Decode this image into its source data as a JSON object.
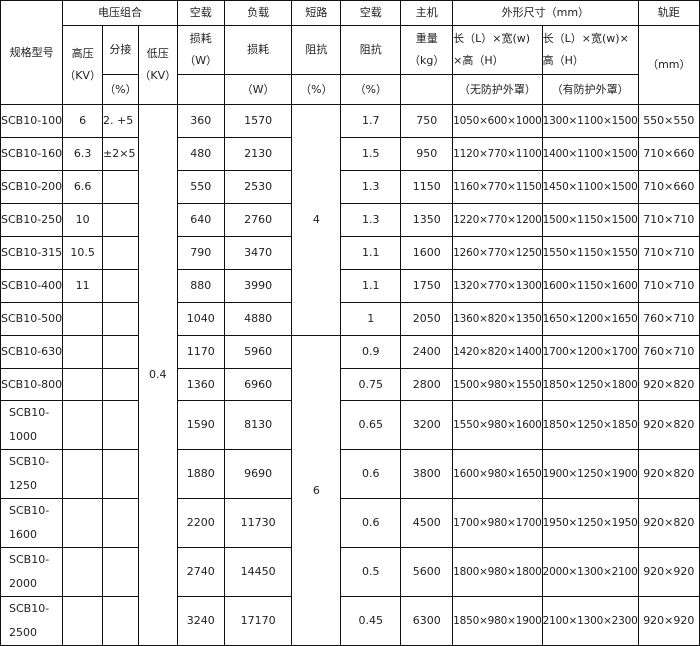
{
  "header": {
    "model": "规格型号",
    "voltage_group": "电压组合",
    "hv": "高压",
    "hv_unit": "（KV）",
    "tap": "分接",
    "tap_unit": "（%）",
    "lv": "低压",
    "lv_unit": "（KV）",
    "noload": "空载",
    "noload_sub": "损耗",
    "noload_unit": "（W）",
    "load": "负载",
    "load_sub": "损耗",
    "load_unit": "（W）",
    "short": "短路",
    "short_sub": "阻抗",
    "short_unit": "（%）",
    "noload2": "空载",
    "noload2_sub": "阻抗",
    "noload2_unit": "（%）",
    "host": "主机",
    "host_sub": "重量",
    "host_unit": "（kg）",
    "dims": "外形尺寸（mm）",
    "dim1_a": "长（L）×宽(w)",
    "dim1_b": "×高（H）",
    "dim1_note": "（无防护外罩）",
    "dim2_a": "长（L）×宽(w)×",
    "dim2_b": "高（H）",
    "dim2_note": "（有防护外罩）",
    "gauge": "轨距",
    "gauge_unit": "（mm）"
  },
  "lv_value": "0.4",
  "short_values": [
    "4",
    "6"
  ],
  "rows": [
    {
      "model": "SCB10-100",
      "hv": "6",
      "tap": "2. +5",
      "nl": "360",
      "ll": "1570",
      "z": "1.7",
      "w": "750",
      "d1": "1050×600×1000",
      "d2": "1300×1100×1500",
      "g": "550×550"
    },
    {
      "model": "SCB10-160",
      "hv": "6.3",
      "tap": "±2×5",
      "nl": "480",
      "ll": "2130",
      "z": "1.5",
      "w": "950",
      "d1": "1120×770×1100",
      "d2": "1400×1100×1500",
      "g": "710×660"
    },
    {
      "model": "SCB10-200",
      "hv": "6.6",
      "tap": "",
      "nl": "550",
      "ll": "2530",
      "z": "1.3",
      "w": "1150",
      "d1": "1160×770×1150",
      "d2": "1450×1100×1500",
      "g": "710×660"
    },
    {
      "model": "SCB10-250",
      "hv": "10",
      "tap": "",
      "nl": "640",
      "ll": "2760",
      "z": "1.3",
      "w": "1350",
      "d1": "1220×770×1200",
      "d2": "1500×1150×1500",
      "g": "710×710"
    },
    {
      "model": "SCB10-315",
      "hv": "10.5",
      "tap": "",
      "nl": "790",
      "ll": "3470",
      "z": "1.1",
      "w": "1600",
      "d1": "1260×770×1250",
      "d2": "1550×1150×1550",
      "g": "710×710"
    },
    {
      "model": "SCB10-400",
      "hv": "11",
      "tap": "",
      "nl": "880",
      "ll": "3990",
      "z": "1.1",
      "w": "1750",
      "d1": "1320×770×1300",
      "d2": "1600×1150×1600",
      "g": "710×710"
    },
    {
      "model": "SCB10-500",
      "hv": "",
      "tap": "",
      "nl": "1040",
      "ll": "4880",
      "z": "1",
      "w": "2050",
      "d1": "1360×820×1350",
      "d2": "1650×1200×1650",
      "g": "760×710"
    },
    {
      "model": "SCB10-630",
      "hv": "",
      "tap": "",
      "nl": "1170",
      "ll": "5960",
      "z": "0.9",
      "w": "2400",
      "d1": "1420×820×1400",
      "d2": "1700×1200×1700",
      "g": "760×710"
    },
    {
      "model": "SCB10-800",
      "hv": "",
      "tap": "",
      "nl": "1360",
      "ll": "6960",
      "z": "0.75",
      "w": "2800",
      "d1": "1500×980×1550",
      "d2": "1850×1250×1800",
      "g": "920×820"
    },
    {
      "model": "SCB10-1000",
      "hv": "",
      "tap": "",
      "nl": "1590",
      "ll": "8130",
      "z": "0.65",
      "w": "3200",
      "d1": "1550×980×1600",
      "d2": "1850×1250×1850",
      "g": "920×820"
    },
    {
      "model": "SCB10-1250",
      "hv": "",
      "tap": "",
      "nl": "1880",
      "ll": "9690",
      "z": "0.6",
      "w": "3800",
      "d1": "1600×980×1650",
      "d2": "1900×1250×1900",
      "g": "920×820"
    },
    {
      "model": "SCB10-1600",
      "hv": "",
      "tap": "",
      "nl": "2200",
      "ll": "11730",
      "z": "0.6",
      "w": "4500",
      "d1": "1700×980×1700",
      "d2": "1950×1250×1950",
      "g": "920×820"
    },
    {
      "model": "SCB10-2000",
      "hv": "",
      "tap": "",
      "nl": "2740",
      "ll": "14450",
      "z": "0.5",
      "w": "5600",
      "d1": "1800×980×1800",
      "d2": "2000×1300×2100",
      "g": "920×920"
    },
    {
      "model": "SCB10-2500",
      "hv": "",
      "tap": "",
      "nl": "3240",
      "ll": "17170",
      "z": "0.45",
      "w": "6300",
      "d1": "1850×980×1900",
      "d2": "2100×1300×2300",
      "g": "920×920"
    }
  ]
}
